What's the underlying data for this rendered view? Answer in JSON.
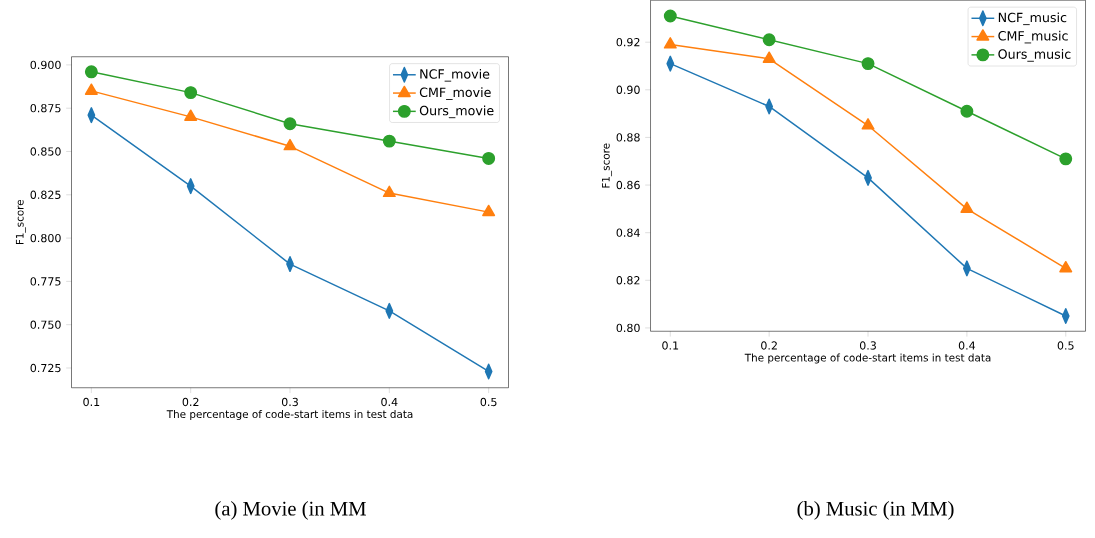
{
  "chart_data": [
    {
      "type": "line",
      "x": [
        0.1,
        0.2,
        0.3,
        0.4,
        0.5
      ],
      "xlim": [
        0.08,
        0.52
      ],
      "ylim": [
        0.7136,
        0.9047
      ],
      "xticks": [
        0.1,
        0.2,
        0.3,
        0.4,
        0.5
      ],
      "yticks": [
        {
          "value": 0.725,
          "label": "0.725"
        },
        {
          "value": 0.75,
          "label": "0.750"
        },
        {
          "value": 0.775,
          "label": "0.775"
        },
        {
          "value": 0.8,
          "label": "0.800"
        },
        {
          "value": 0.825,
          "label": "0.825"
        },
        {
          "value": 0.85,
          "label": "0.850"
        },
        {
          "value": 0.875,
          "label": "0.875"
        },
        {
          "value": 0.9,
          "label": "0.900"
        }
      ],
      "xlabel": "The percentage of code-start items in test data",
      "ylabel": "F1_score",
      "legend": "top right",
      "grid": false,
      "annotations": [
        "(a) Movie (in MM"
      ],
      "series": [
        {
          "name": "NCF_movie",
          "color": "#1f77b4",
          "marker": "diamond",
          "values": [
            0.871,
            0.83,
            0.785,
            0.758,
            0.723
          ]
        },
        {
          "name": "CMF_movie",
          "color": "#ff7f0e",
          "marker": "triangle",
          "values": [
            0.885,
            0.87,
            0.853,
            0.826,
            0.815
          ]
        },
        {
          "name": "Ours_movie",
          "color": "#2ca02c",
          "marker": "circle",
          "values": [
            0.896,
            0.884,
            0.866,
            0.856,
            0.846
          ]
        }
      ]
    },
    {
      "type": "line",
      "x": [
        0.1,
        0.2,
        0.3,
        0.4,
        0.5
      ],
      "xlim": [
        0.08,
        0.52
      ],
      "ylim": [
        0.7986,
        0.9376
      ],
      "xticks": [
        0.1,
        0.2,
        0.3,
        0.4,
        0.5
      ],
      "yticks": [
        {
          "value": 0.8,
          "label": "0.80"
        },
        {
          "value": 0.82,
          "label": "0.82"
        },
        {
          "value": 0.84,
          "label": "0.84"
        },
        {
          "value": 0.86,
          "label": "0.86"
        },
        {
          "value": 0.88,
          "label": "0.88"
        },
        {
          "value": 0.9,
          "label": "0.90"
        },
        {
          "value": 0.92,
          "label": "0.92"
        }
      ],
      "xlabel": "The percentage of code-start items in test data",
      "ylabel": "F1_score",
      "legend": "top right",
      "grid": false,
      "annotations": [
        "(b) Music (in MM)"
      ],
      "series": [
        {
          "name": "NCF_music",
          "color": "#1f77b4",
          "marker": "diamond",
          "values": [
            0.911,
            0.893,
            0.863,
            0.825,
            0.805
          ]
        },
        {
          "name": "CMF_music",
          "color": "#ff7f0e",
          "marker": "triangle",
          "values": [
            0.919,
            0.913,
            0.885,
            0.85,
            0.825
          ]
        },
        {
          "name": "Ours_music",
          "color": "#2ca02c",
          "marker": "circle",
          "values": [
            0.931,
            0.921,
            0.911,
            0.891,
            0.871
          ]
        }
      ]
    }
  ]
}
